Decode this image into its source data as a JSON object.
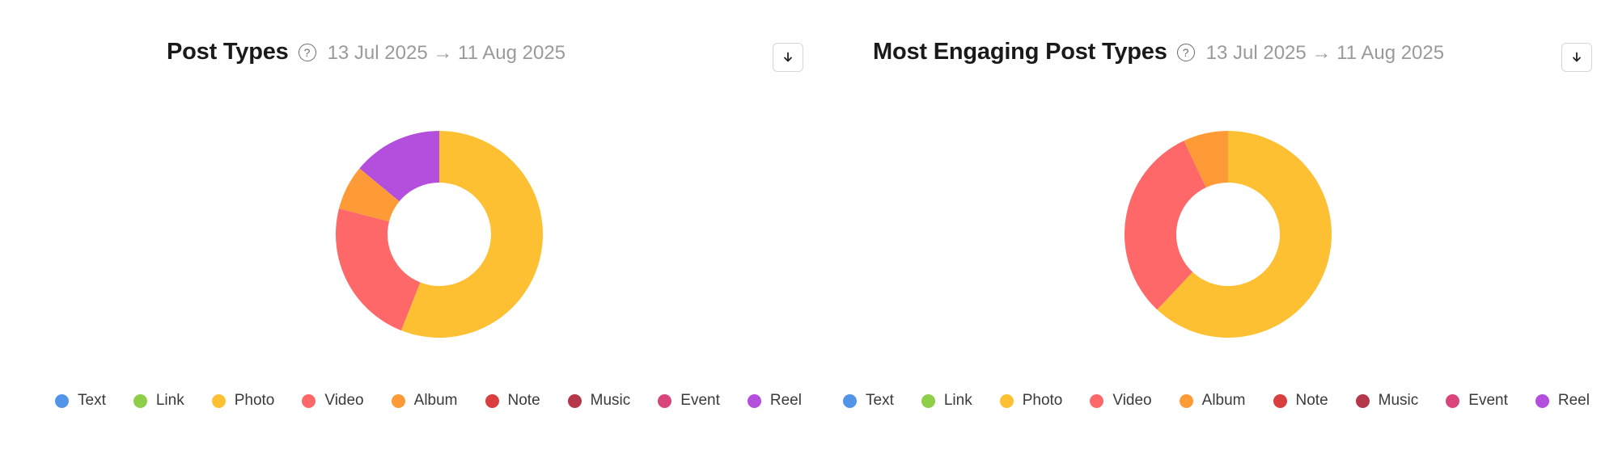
{
  "charts": [
    {
      "title": "Post Types",
      "date_range": "13 Jul 2025 → 11 Aug 2025",
      "help_label": "?"
    },
    {
      "title": "Most Engaging Post Types",
      "date_range": "13 Jul 2025 → 11 Aug 2025",
      "help_label": "?"
    }
  ],
  "legend": [
    {
      "label": "Text",
      "color": "#5294e8"
    },
    {
      "label": "Link",
      "color": "#8fce49"
    },
    {
      "label": "Photo",
      "color": "#fdc032"
    },
    {
      "label": "Video",
      "color": "#fe6868"
    },
    {
      "label": "Album",
      "color": "#fe9b37"
    },
    {
      "label": "Note",
      "color": "#d93f3f"
    },
    {
      "label": "Music",
      "color": "#b5384a"
    },
    {
      "label": "Event",
      "color": "#d9457a"
    },
    {
      "label": "Reel",
      "color": "#b34fdc"
    }
  ],
  "chart_data": [
    {
      "type": "pie",
      "title": "Post Types",
      "categories": [
        "Text",
        "Link",
        "Photo",
        "Video",
        "Album",
        "Note",
        "Music",
        "Event",
        "Reel"
      ],
      "values": [
        0,
        0,
        56,
        23,
        7,
        0,
        0,
        0,
        14
      ],
      "donut": true,
      "legend": "bottom"
    },
    {
      "type": "pie",
      "title": "Most Engaging Post Types",
      "categories": [
        "Text",
        "Link",
        "Photo",
        "Video",
        "Album",
        "Note",
        "Music",
        "Event",
        "Reel"
      ],
      "values": [
        0,
        0,
        62,
        31,
        7,
        0,
        0,
        0,
        0
      ],
      "donut": true,
      "legend": "bottom"
    }
  ]
}
